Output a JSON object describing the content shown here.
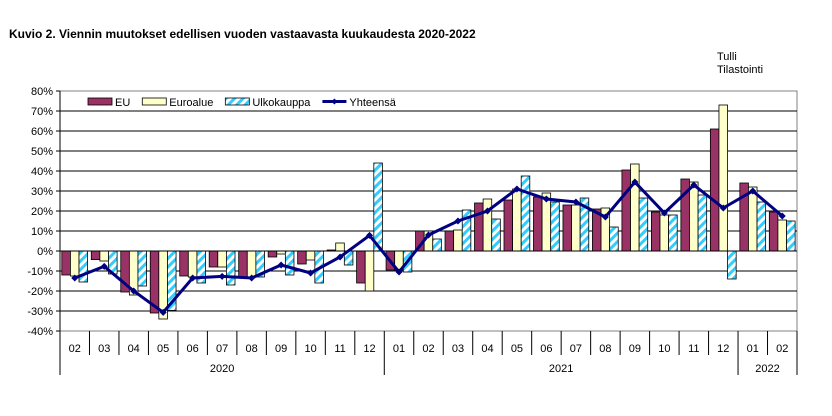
{
  "chart_data": {
    "type": "bar",
    "title": "Kuvio  2. Viennin  muutokset edellisen vuoden  vastaavasta kuukaudesta 2020-2022",
    "source": [
      "Tulli",
      "Tilastointi"
    ],
    "xlabel": "",
    "ylabel": "",
    "ylim": [
      -40,
      80
    ],
    "yticks": [
      "-40%",
      "-30%",
      "-20%",
      "-10%",
      "0%",
      "10%",
      "20%",
      "30%",
      "40%",
      "50%",
      "60%",
      "70%",
      "80%"
    ],
    "grid": true,
    "legend_position": "top-left",
    "categories": [
      "02",
      "03",
      "04",
      "05",
      "06",
      "07",
      "08",
      "09",
      "10",
      "11",
      "12",
      "01",
      "02",
      "03",
      "04",
      "05",
      "06",
      "07",
      "08",
      "09",
      "10",
      "11",
      "12",
      "01",
      "02"
    ],
    "years": [
      {
        "label": "2020",
        "start": 0,
        "end": 10
      },
      {
        "label": "2021",
        "start": 11,
        "end": 22
      },
      {
        "label": "2022",
        "start": 23,
        "end": 24
      }
    ],
    "series": [
      {
        "name": "EU",
        "type": "bar",
        "color": "#993366",
        "values": [
          -12,
          -4.3,
          -20.5,
          -31,
          -12.5,
          -8,
          -13,
          -3,
          -6.5,
          0.5,
          -16,
          -9.5,
          10,
          10,
          24,
          25.5,
          27,
          23,
          21,
          40.5,
          19.5,
          36,
          61,
          34,
          19.5
        ]
      },
      {
        "name": "Euroalue",
        "type": "bar",
        "color": "#FFFFCC",
        "values": [
          -12.5,
          -5,
          -22,
          -34,
          -13,
          -8,
          -13,
          -1.5,
          -4.5,
          4,
          -20,
          -9.5,
          10,
          10.5,
          26,
          31,
          29,
          23,
          21.5,
          43.5,
          18,
          34.5,
          73,
          32,
          15.5
        ]
      },
      {
        "name": "Ulkokauppa",
        "type": "bar",
        "color": "#33CCFF",
        "values": [
          -15.5,
          -11.5,
          -17.5,
          -29.7,
          -16,
          -17,
          -13,
          -12,
          -16,
          -7,
          44,
          -10.5,
          6,
          20.5,
          16,
          37.5,
          24.5,
          26.5,
          12,
          26.5,
          18,
          28,
          -14,
          24.5,
          15
        ]
      },
      {
        "name": "Yhteensä",
        "type": "line",
        "color": "#000080",
        "values": [
          -13.5,
          -7.7,
          -20,
          -30.7,
          -13.5,
          -12.7,
          -13.5,
          -7,
          -11,
          -3,
          7.8,
          -10.5,
          8,
          15,
          20,
          31,
          26,
          24.5,
          17,
          34.5,
          19,
          33,
          21.5,
          30,
          17.5
        ]
      }
    ]
  }
}
